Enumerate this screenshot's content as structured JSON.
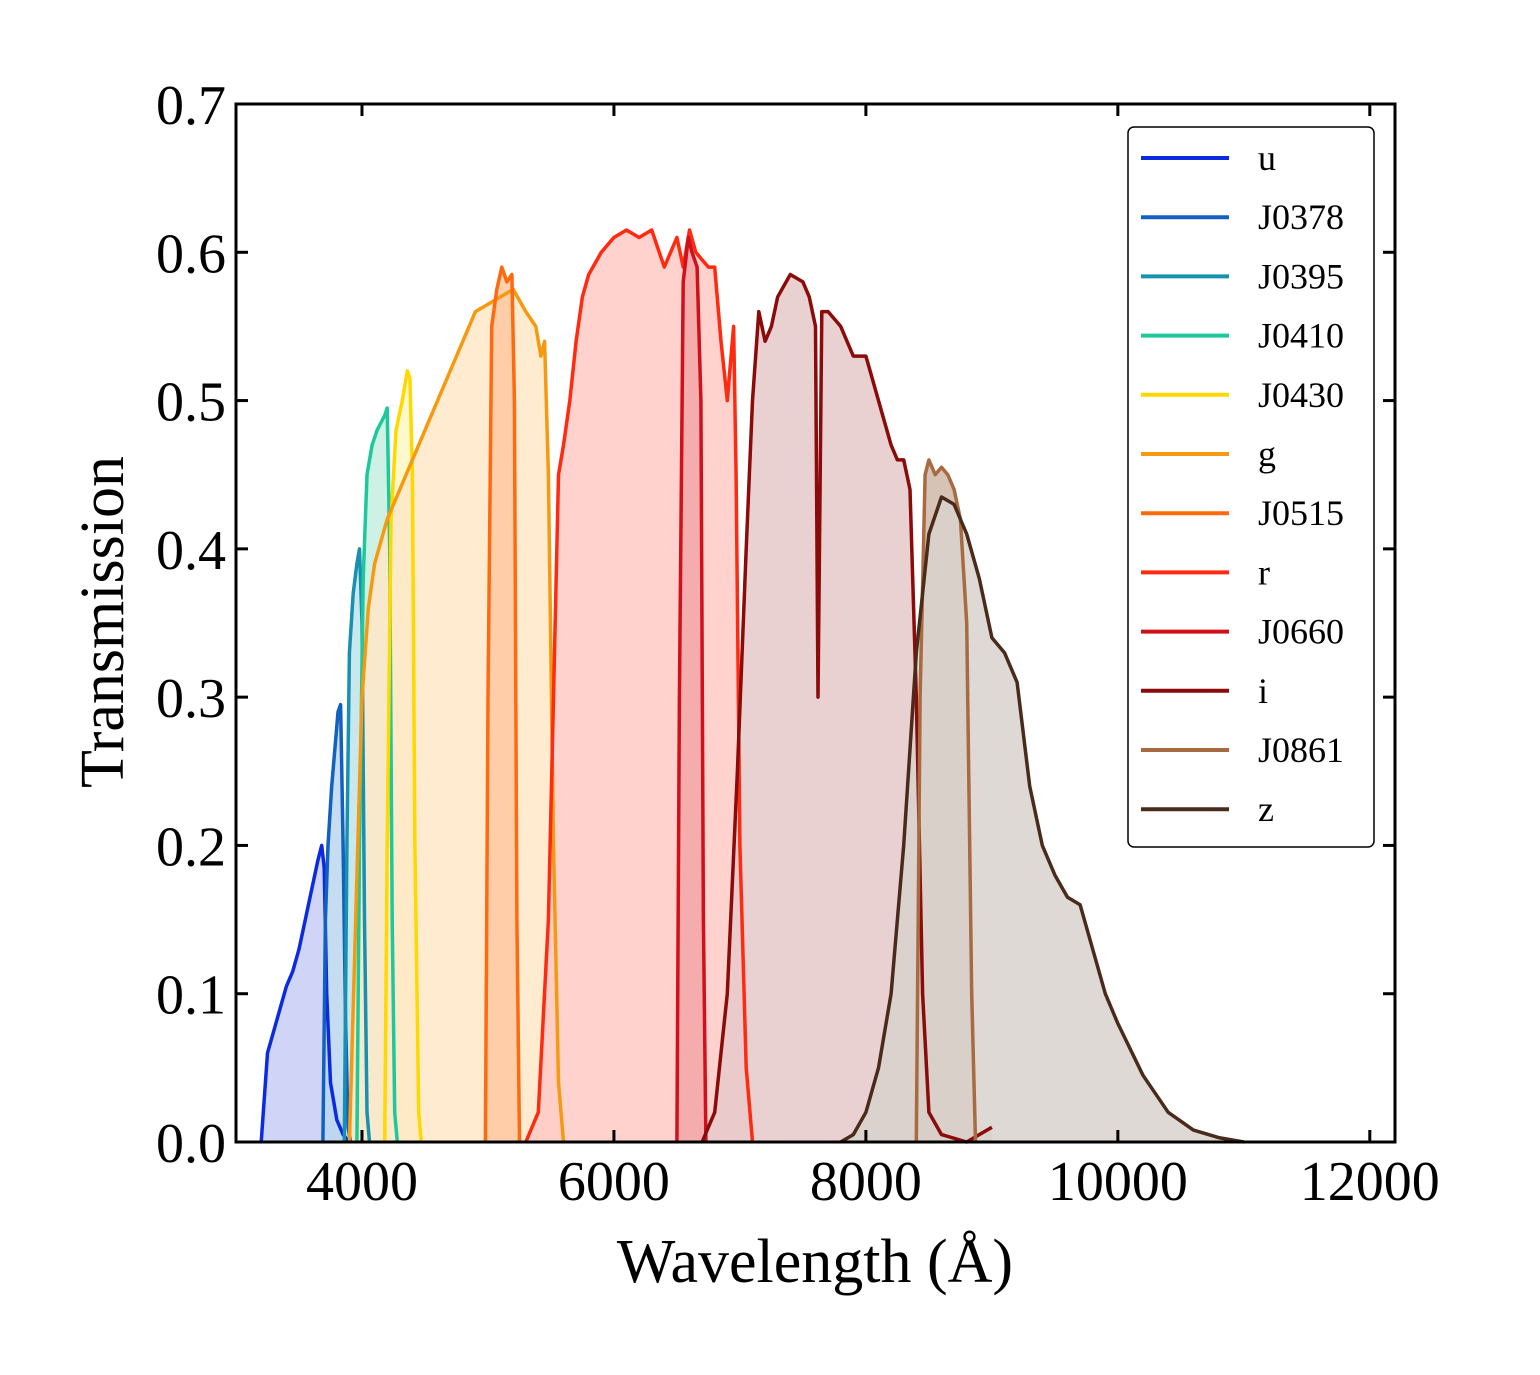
{
  "chart_data": {
    "type": "area",
    "title": "",
    "xlabel": "Wavelength (Å)",
    "ylabel": "Transmission",
    "xlim": [
      3000,
      12200
    ],
    "ylim": [
      0.0,
      0.7
    ],
    "x_ticks": [
      4000,
      6000,
      8000,
      10000,
      12000
    ],
    "x_tick_labels": [
      "4000",
      "6000",
      "8000",
      "10000",
      "12000"
    ],
    "y_ticks": [
      0.0,
      0.1,
      0.2,
      0.3,
      0.4,
      0.5,
      0.6,
      0.7
    ],
    "y_tick_labels": [
      "0.0",
      "0.1",
      "0.2",
      "0.3",
      "0.4",
      "0.5",
      "0.6",
      "0.7"
    ],
    "grid": false,
    "legend_position": "top-right",
    "series": [
      {
        "name": "u",
        "color": "#0a2be0",
        "fill": "#c8cdf6",
        "points": [
          [
            3200,
            0
          ],
          [
            3250,
            0.06
          ],
          [
            3300,
            0.075
          ],
          [
            3350,
            0.09
          ],
          [
            3400,
            0.105
          ],
          [
            3450,
            0.115
          ],
          [
            3500,
            0.13
          ],
          [
            3550,
            0.15
          ],
          [
            3600,
            0.17
          ],
          [
            3650,
            0.19
          ],
          [
            3680,
            0.2
          ],
          [
            3700,
            0.185
          ],
          [
            3720,
            0.1
          ],
          [
            3750,
            0.04
          ],
          [
            3800,
            0.015
          ],
          [
            3850,
            0.005
          ],
          [
            3900,
            0
          ]
        ]
      },
      {
        "name": "J0378",
        "color": "#1260c0",
        "fill": "#bcd6ee",
        "points": [
          [
            3690,
            0
          ],
          [
            3710,
            0.15
          ],
          [
            3730,
            0.2
          ],
          [
            3760,
            0.24
          ],
          [
            3790,
            0.27
          ],
          [
            3810,
            0.29
          ],
          [
            3830,
            0.295
          ],
          [
            3850,
            0.2
          ],
          [
            3870,
            0.08
          ],
          [
            3890,
            0.01
          ],
          [
            3910,
            0
          ]
        ]
      },
      {
        "name": "J0395",
        "color": "#1890b0",
        "fill": "#bfe4ea",
        "points": [
          [
            3860,
            0
          ],
          [
            3880,
            0.2
          ],
          [
            3900,
            0.33
          ],
          [
            3930,
            0.37
          ],
          [
            3960,
            0.39
          ],
          [
            3980,
            0.4
          ],
          [
            4000,
            0.35
          ],
          [
            4020,
            0.15
          ],
          [
            4040,
            0.02
          ],
          [
            4060,
            0
          ]
        ]
      },
      {
        "name": "J0410",
        "color": "#1ec89a",
        "fill": "#c4f0e0",
        "points": [
          [
            3960,
            0
          ],
          [
            3980,
            0.2
          ],
          [
            4010,
            0.38
          ],
          [
            4040,
            0.45
          ],
          [
            4080,
            0.47
          ],
          [
            4120,
            0.48
          ],
          [
            4180,
            0.49
          ],
          [
            4200,
            0.495
          ],
          [
            4220,
            0.4
          ],
          [
            4240,
            0.15
          ],
          [
            4260,
            0.02
          ],
          [
            4280,
            0
          ]
        ]
      },
      {
        "name": "J0430",
        "color": "#ffd800",
        "fill": "#fff7c2",
        "points": [
          [
            4180,
            0
          ],
          [
            4200,
            0.2
          ],
          [
            4230,
            0.42
          ],
          [
            4270,
            0.48
          ],
          [
            4320,
            0.5
          ],
          [
            4360,
            0.52
          ],
          [
            4380,
            0.515
          ],
          [
            4400,
            0.45
          ],
          [
            4420,
            0.2
          ],
          [
            4450,
            0.02
          ],
          [
            4470,
            0
          ]
        ]
      },
      {
        "name": "g",
        "color": "#f59a10",
        "fill": "#ffe8c8",
        "points": [
          [
            3900,
            0
          ],
          [
            3950,
            0.15
          ],
          [
            4000,
            0.3
          ],
          [
            4050,
            0.36
          ],
          [
            4100,
            0.39
          ],
          [
            4200,
            0.42
          ],
          [
            4300,
            0.44
          ],
          [
            4400,
            0.46
          ],
          [
            4500,
            0.48
          ],
          [
            4600,
            0.5
          ],
          [
            4700,
            0.52
          ],
          [
            4800,
            0.54
          ],
          [
            4900,
            0.56
          ],
          [
            5000,
            0.565
          ],
          [
            5100,
            0.57
          ],
          [
            5200,
            0.575
          ],
          [
            5300,
            0.56
          ],
          [
            5380,
            0.55
          ],
          [
            5420,
            0.53
          ],
          [
            5450,
            0.54
          ],
          [
            5480,
            0.45
          ],
          [
            5520,
            0.2
          ],
          [
            5560,
            0.04
          ],
          [
            5600,
            0
          ]
        ]
      },
      {
        "name": "J0515",
        "color": "#ff6a10",
        "fill": "#ffc8a0",
        "points": [
          [
            4980,
            0
          ],
          [
            5000,
            0.3
          ],
          [
            5030,
            0.55
          ],
          [
            5070,
            0.575
          ],
          [
            5110,
            0.59
          ],
          [
            5150,
            0.58
          ],
          [
            5190,
            0.585
          ],
          [
            5210,
            0.5
          ],
          [
            5230,
            0.15
          ],
          [
            5250,
            0
          ]
        ]
      },
      {
        "name": "r",
        "color": "#ff2a10",
        "fill": "#ffcac6",
        "points": [
          [
            5300,
            0
          ],
          [
            5400,
            0.02
          ],
          [
            5480,
            0.15
          ],
          [
            5520,
            0.3
          ],
          [
            5560,
            0.45
          ],
          [
            5600,
            0.47
          ],
          [
            5650,
            0.5
          ],
          [
            5700,
            0.54
          ],
          [
            5750,
            0.57
          ],
          [
            5800,
            0.585
          ],
          [
            5900,
            0.6
          ],
          [
            6000,
            0.61
          ],
          [
            6100,
            0.615
          ],
          [
            6200,
            0.61
          ],
          [
            6300,
            0.615
          ],
          [
            6400,
            0.59
          ],
          [
            6450,
            0.6
          ],
          [
            6500,
            0.61
          ],
          [
            6550,
            0.59
          ],
          [
            6600,
            0.615
          ],
          [
            6650,
            0.6
          ],
          [
            6700,
            0.595
          ],
          [
            6750,
            0.59
          ],
          [
            6800,
            0.59
          ],
          [
            6850,
            0.54
          ],
          [
            6900,
            0.5
          ],
          [
            6950,
            0.55
          ],
          [
            6970,
            0.45
          ],
          [
            7000,
            0.2
          ],
          [
            7050,
            0.05
          ],
          [
            7100,
            0
          ]
        ]
      },
      {
        "name": "J0660",
        "color": "#d0101a",
        "fill": "#f2a6a6",
        "points": [
          [
            6500,
            0
          ],
          [
            6520,
            0.3
          ],
          [
            6550,
            0.58
          ],
          [
            6590,
            0.61
          ],
          [
            6620,
            0.6
          ],
          [
            6660,
            0.59
          ],
          [
            6690,
            0.5
          ],
          [
            6710,
            0.15
          ],
          [
            6730,
            0
          ]
        ]
      },
      {
        "name": "i",
        "color": "#8b0a0a",
        "fill": "#e6c9c9",
        "points": [
          [
            6700,
            0
          ],
          [
            6800,
            0.02
          ],
          [
            6900,
            0.1
          ],
          [
            6980,
            0.25
          ],
          [
            7050,
            0.4
          ],
          [
            7100,
            0.5
          ],
          [
            7150,
            0.56
          ],
          [
            7200,
            0.54
          ],
          [
            7250,
            0.55
          ],
          [
            7300,
            0.57
          ],
          [
            7400,
            0.585
          ],
          [
            7500,
            0.58
          ],
          [
            7550,
            0.57
          ],
          [
            7600,
            0.55
          ],
          [
            7620,
            0.3
          ],
          [
            7650,
            0.56
          ],
          [
            7700,
            0.56
          ],
          [
            7800,
            0.55
          ],
          [
            7900,
            0.53
          ],
          [
            8000,
            0.53
          ],
          [
            8100,
            0.5
          ],
          [
            8200,
            0.47
          ],
          [
            8250,
            0.46
          ],
          [
            8300,
            0.46
          ],
          [
            8350,
            0.44
          ],
          [
            8400,
            0.3
          ],
          [
            8450,
            0.1
          ],
          [
            8500,
            0.02
          ],
          [
            8600,
            0.005
          ],
          [
            8800,
            0
          ],
          [
            9000,
            0.01
          ]
        ]
      },
      {
        "name": "J0861",
        "color": "#a86a40",
        "fill": "#cfb8a8",
        "points": [
          [
            8400,
            0
          ],
          [
            8430,
            0.3
          ],
          [
            8470,
            0.45
          ],
          [
            8500,
            0.46
          ],
          [
            8550,
            0.45
          ],
          [
            8600,
            0.455
          ],
          [
            8650,
            0.45
          ],
          [
            8700,
            0.44
          ],
          [
            8750,
            0.42
          ],
          [
            8800,
            0.35
          ],
          [
            8840,
            0.1
          ],
          [
            8870,
            0
          ]
        ]
      },
      {
        "name": "z",
        "color": "#4a2a1a",
        "fill": "#d8d2cc",
        "points": [
          [
            7800,
            0
          ],
          [
            7900,
            0.005
          ],
          [
            8000,
            0.02
          ],
          [
            8100,
            0.05
          ],
          [
            8200,
            0.1
          ],
          [
            8300,
            0.2
          ],
          [
            8400,
            0.33
          ],
          [
            8500,
            0.41
          ],
          [
            8600,
            0.435
          ],
          [
            8700,
            0.43
          ],
          [
            8800,
            0.41
          ],
          [
            8900,
            0.38
          ],
          [
            9000,
            0.34
          ],
          [
            9100,
            0.33
          ],
          [
            9200,
            0.31
          ],
          [
            9300,
            0.24
          ],
          [
            9400,
            0.2
          ],
          [
            9500,
            0.18
          ],
          [
            9600,
            0.165
          ],
          [
            9700,
            0.16
          ],
          [
            9800,
            0.13
          ],
          [
            9900,
            0.1
          ],
          [
            10000,
            0.08
          ],
          [
            10200,
            0.045
          ],
          [
            10400,
            0.02
          ],
          [
            10600,
            0.008
          ],
          [
            10800,
            0.003
          ],
          [
            11000,
            0
          ]
        ]
      }
    ]
  }
}
